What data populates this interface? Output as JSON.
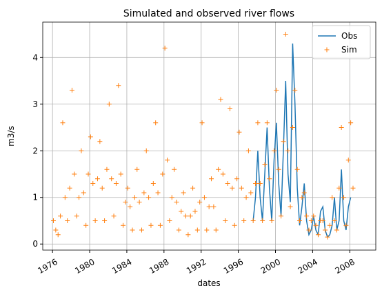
{
  "chart_data": {
    "type": "line",
    "title": "Simulated and observed river flows",
    "x_label": "dates",
    "y_label": "m3/s",
    "xlim": [
      1974.95,
      2010.8
    ],
    "ylim": [
      -0.13,
      4.76
    ],
    "xticks": [
      1976,
      1980,
      1984,
      1988,
      1992,
      1996,
      2000,
      2004,
      2008
    ],
    "yticks": [
      0,
      1,
      2,
      3,
      4
    ],
    "grid": true,
    "legend": "upper right",
    "series": [
      {
        "name": "Obs",
        "color": "#1f77b4",
        "style": "line",
        "x": [
          1997.6,
          1997.85,
          1998.1,
          1998.35,
          1998.6,
          1998.85,
          1999.1,
          1999.35,
          1999.6,
          1999.85,
          2000.1,
          2000.35,
          2000.6,
          2000.85,
          2001.1,
          2001.35,
          2001.6,
          2001.85,
          2002.1,
          2002.35,
          2002.6,
          2002.85,
          2003.1,
          2003.35,
          2003.6,
          2003.85,
          2004.1,
          2004.35,
          2004.6,
          2004.85,
          2005.1,
          2005.35,
          2005.6,
          2005.85,
          2006.1,
          2006.35,
          2006.6,
          2006.85,
          2007.1,
          2007.35,
          2007.6,
          2007.85,
          2008.1
        ],
        "values": [
          0.5,
          1.0,
          2.0,
          1.0,
          0.5,
          1.5,
          2.5,
          1.2,
          0.5,
          1.8,
          2.6,
          1.3,
          0.6,
          2.0,
          3.5,
          1.5,
          0.9,
          4.3,
          3.0,
          1.2,
          0.4,
          0.8,
          1.3,
          0.5,
          0.2,
          0.3,
          0.6,
          0.3,
          0.2,
          0.7,
          0.8,
          0.3,
          0.15,
          0.2,
          0.4,
          1.0,
          0.3,
          0.5,
          1.6,
          0.5,
          0.3,
          0.8,
          1.0
        ]
      },
      {
        "name": "Sim",
        "color": "#ff7f0e",
        "style": "marker",
        "x": [
          1976.1,
          1976.35,
          1976.6,
          1976.85,
          1977.1,
          1977.35,
          1977.6,
          1977.85,
          1978.1,
          1978.35,
          1978.6,
          1978.85,
          1979.1,
          1979.35,
          1979.6,
          1979.85,
          1980.1,
          1980.35,
          1980.6,
          1980.85,
          1981.1,
          1981.35,
          1981.6,
          1981.85,
          1982.1,
          1982.35,
          1982.6,
          1982.85,
          1983.1,
          1983.35,
          1983.6,
          1983.85,
          1984.1,
          1984.35,
          1984.6,
          1984.85,
          1985.1,
          1985.35,
          1985.6,
          1985.85,
          1986.1,
          1986.35,
          1986.6,
          1986.85,
          1987.1,
          1987.35,
          1987.6,
          1987.85,
          1988.1,
          1988.35,
          1988.6,
          1988.85,
          1989.1,
          1989.35,
          1989.6,
          1989.85,
          1990.1,
          1990.35,
          1990.6,
          1990.85,
          1991.1,
          1991.35,
          1991.6,
          1991.85,
          1992.1,
          1992.35,
          1992.6,
          1992.85,
          1993.1,
          1993.35,
          1993.6,
          1993.85,
          1994.1,
          1994.35,
          1994.6,
          1994.85,
          1995.1,
          1995.35,
          1995.6,
          1995.85,
          1996.1,
          1996.35,
          1996.6,
          1996.85,
          1997.1,
          1997.35,
          1997.6,
          1997.85,
          1998.1,
          1998.35,
          1998.6,
          1998.85,
          1999.1,
          1999.35,
          1999.6,
          1999.85,
          2000.1,
          2000.35,
          2000.6,
          2000.85,
          2001.1,
          2001.35,
          2001.6,
          2001.85,
          2002.1,
          2002.35,
          2002.6,
          2002.85,
          2003.1,
          2003.35,
          2003.6,
          2003.85,
          2004.1,
          2004.35,
          2004.6,
          2004.85,
          2005.1,
          2005.35,
          2005.6,
          2005.85,
          2006.1,
          2006.35,
          2006.6,
          2006.85,
          2007.1,
          2007.35,
          2007.6,
          2007.85,
          2008.1,
          2008.35
        ],
        "values": [
          0.5,
          0.3,
          0.2,
          0.6,
          2.6,
          1.0,
          0.5,
          1.2,
          3.3,
          1.5,
          0.6,
          1.0,
          2.0,
          1.1,
          0.4,
          1.5,
          2.3,
          1.3,
          0.5,
          1.4,
          2.2,
          1.2,
          0.5,
          1.6,
          3.0,
          1.4,
          0.6,
          1.3,
          3.4,
          1.5,
          0.4,
          0.9,
          1.2,
          0.8,
          0.3,
          1.0,
          1.6,
          0.9,
          0.3,
          1.1,
          2.0,
          1.0,
          0.4,
          1.3,
          2.6,
          1.1,
          0.4,
          1.5,
          4.2,
          1.8,
          0.5,
          1.0,
          1.6,
          0.9,
          0.3,
          0.7,
          1.1,
          0.6,
          0.2,
          0.6,
          1.2,
          0.7,
          0.3,
          0.9,
          2.6,
          1.0,
          0.3,
          0.8,
          1.4,
          0.8,
          0.3,
          1.6,
          3.1,
          1.5,
          0.5,
          1.3,
          2.9,
          1.2,
          0.4,
          1.4,
          2.4,
          1.2,
          0.5,
          1.0,
          2.0,
          1.1,
          0.5,
          1.3,
          2.6,
          1.3,
          0.5,
          1.7,
          2.6,
          1.4,
          0.5,
          2.0,
          3.3,
          1.6,
          0.6,
          2.2,
          4.5,
          2.0,
          0.8,
          2.5,
          3.3,
          1.6,
          0.5,
          1.0,
          1.1,
          0.6,
          0.3,
          0.5,
          0.6,
          0.4,
          0.2,
          0.5,
          0.5,
          0.3,
          0.15,
          0.4,
          1.0,
          0.5,
          0.3,
          1.2,
          2.5,
          1.0,
          0.4,
          1.8,
          2.6,
          1.2
        ]
      }
    ]
  }
}
